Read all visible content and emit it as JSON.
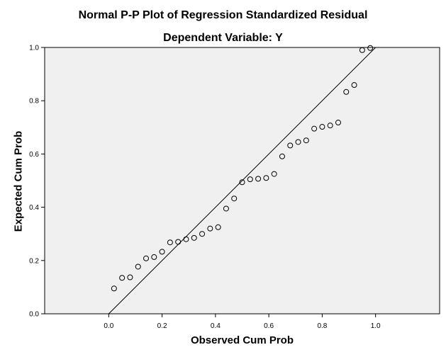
{
  "chart_data": {
    "type": "scatter",
    "title": "Normal P-P Plot of Regression Standardized Residual",
    "subtitle": "Dependent Variable: Y",
    "xlabel": "Observed Cum Prob",
    "ylabel": "Expected Cum Prob",
    "xlim": [
      -0.24,
      1.24
    ],
    "ylim": [
      0.0,
      1.0
    ],
    "x_ticks": [
      "0.0",
      "0.2",
      "0.4",
      "0.6",
      "0.8",
      "1.0"
    ],
    "y_ticks": [
      "0.0",
      "0.2",
      "0.4",
      "0.6",
      "0.8",
      "1.0"
    ],
    "grid": false,
    "reference_line": {
      "from": [
        0,
        0
      ],
      "to": [
        1,
        1
      ]
    },
    "points": [
      {
        "x": 0.02,
        "y": 0.095
      },
      {
        "x": 0.05,
        "y": 0.135
      },
      {
        "x": 0.08,
        "y": 0.137
      },
      {
        "x": 0.11,
        "y": 0.177
      },
      {
        "x": 0.14,
        "y": 0.208
      },
      {
        "x": 0.17,
        "y": 0.213
      },
      {
        "x": 0.2,
        "y": 0.233
      },
      {
        "x": 0.23,
        "y": 0.268
      },
      {
        "x": 0.26,
        "y": 0.27
      },
      {
        "x": 0.29,
        "y": 0.28
      },
      {
        "x": 0.32,
        "y": 0.285
      },
      {
        "x": 0.35,
        "y": 0.3
      },
      {
        "x": 0.38,
        "y": 0.32
      },
      {
        "x": 0.41,
        "y": 0.325
      },
      {
        "x": 0.44,
        "y": 0.395
      },
      {
        "x": 0.47,
        "y": 0.433
      },
      {
        "x": 0.5,
        "y": 0.494
      },
      {
        "x": 0.53,
        "y": 0.505
      },
      {
        "x": 0.56,
        "y": 0.507
      },
      {
        "x": 0.59,
        "y": 0.51
      },
      {
        "x": 0.62,
        "y": 0.525
      },
      {
        "x": 0.65,
        "y": 0.591
      },
      {
        "x": 0.68,
        "y": 0.632
      },
      {
        "x": 0.71,
        "y": 0.645
      },
      {
        "x": 0.74,
        "y": 0.651
      },
      {
        "x": 0.77,
        "y": 0.695
      },
      {
        "x": 0.8,
        "y": 0.702
      },
      {
        "x": 0.83,
        "y": 0.707
      },
      {
        "x": 0.86,
        "y": 0.718
      },
      {
        "x": 0.89,
        "y": 0.833
      },
      {
        "x": 0.92,
        "y": 0.859
      },
      {
        "x": 0.95,
        "y": 0.99
      },
      {
        "x": 0.98,
        "y": 0.998
      }
    ],
    "colors": {
      "plot_background": "#f0f0f0",
      "axis": "#000000",
      "marker_stroke": "#000000"
    }
  }
}
